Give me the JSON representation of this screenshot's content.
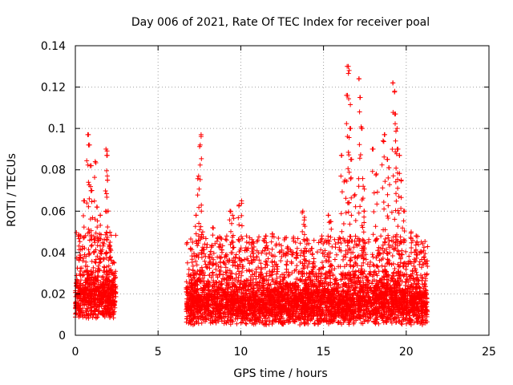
{
  "chart_data": {
    "type": "scatter",
    "title": "Day 006 of 2021, Rate Of TEC Index for receiver poal",
    "xlabel": "GPS time / hours",
    "ylabel": "ROTI / TECUs",
    "xlim": [
      0,
      25
    ],
    "ylim": [
      0,
      0.14
    ],
    "grid": true,
    "x_ticks": [
      0,
      5,
      10,
      15,
      20,
      25
    ],
    "y_ticks": [
      0,
      0.02,
      0.04,
      0.06,
      0.08,
      0.1,
      0.12,
      0.14
    ],
    "x_tick_labels": [
      "0",
      "5",
      "10",
      "15",
      "20",
      "25"
    ],
    "y_tick_labels": [
      "0",
      "0.02",
      "0.04",
      "0.06",
      "0.08",
      "0.1",
      "0.12",
      "0.14"
    ],
    "marker": "+",
    "color": "#ff0000",
    "series": [
      {
        "name": "ROTI",
        "segments": [
          {
            "x_start": 0.0,
            "x_end": 2.45,
            "baseline_min": 0.008,
            "baseline_max": 0.035
          },
          {
            "x_start": 6.7,
            "x_end": 21.3,
            "baseline_min": 0.005,
            "baseline_max": 0.033
          }
        ],
        "peaks": [
          {
            "x": 0.3,
            "y": 0.048
          },
          {
            "x": 0.5,
            "y": 0.065
          },
          {
            "x": 0.75,
            "y": 0.097
          },
          {
            "x": 0.8,
            "y": 0.092
          },
          {
            "x": 0.9,
            "y": 0.082
          },
          {
            "x": 1.0,
            "y": 0.07
          },
          {
            "x": 1.2,
            "y": 0.084
          },
          {
            "x": 1.3,
            "y": 0.062
          },
          {
            "x": 1.5,
            "y": 0.058
          },
          {
            "x": 1.85,
            "y": 0.09
          },
          {
            "x": 1.9,
            "y": 0.087
          },
          {
            "x": 1.95,
            "y": 0.075
          },
          {
            "x": 2.1,
            "y": 0.045
          },
          {
            "x": 7.3,
            "y": 0.058
          },
          {
            "x": 7.45,
            "y": 0.077
          },
          {
            "x": 7.55,
            "y": 0.092
          },
          {
            "x": 7.6,
            "y": 0.097
          },
          {
            "x": 7.7,
            "y": 0.05
          },
          {
            "x": 8.3,
            "y": 0.052
          },
          {
            "x": 8.8,
            "y": 0.047
          },
          {
            "x": 9.35,
            "y": 0.06
          },
          {
            "x": 9.5,
            "y": 0.058
          },
          {
            "x": 9.9,
            "y": 0.063
          },
          {
            "x": 10.05,
            "y": 0.065
          },
          {
            "x": 10.7,
            "y": 0.045
          },
          {
            "x": 11.5,
            "y": 0.048
          },
          {
            "x": 11.9,
            "y": 0.049
          },
          {
            "x": 12.8,
            "y": 0.042
          },
          {
            "x": 13.75,
            "y": 0.06
          },
          {
            "x": 13.85,
            "y": 0.057
          },
          {
            "x": 14.3,
            "y": 0.042
          },
          {
            "x": 14.9,
            "y": 0.048
          },
          {
            "x": 15.3,
            "y": 0.058
          },
          {
            "x": 15.45,
            "y": 0.055
          },
          {
            "x": 16.1,
            "y": 0.087
          },
          {
            "x": 16.3,
            "y": 0.075
          },
          {
            "x": 16.45,
            "y": 0.116
          },
          {
            "x": 16.5,
            "y": 0.13
          },
          {
            "x": 16.55,
            "y": 0.128
          },
          {
            "x": 16.6,
            "y": 0.1
          },
          {
            "x": 16.7,
            "y": 0.085
          },
          {
            "x": 16.9,
            "y": 0.068
          },
          {
            "x": 17.15,
            "y": 0.124
          },
          {
            "x": 17.2,
            "y": 0.115
          },
          {
            "x": 17.3,
            "y": 0.1
          },
          {
            "x": 17.4,
            "y": 0.072
          },
          {
            "x": 17.45,
            "y": 0.06
          },
          {
            "x": 18.0,
            "y": 0.09
          },
          {
            "x": 18.2,
            "y": 0.078
          },
          {
            "x": 18.6,
            "y": 0.094
          },
          {
            "x": 18.7,
            "y": 0.097
          },
          {
            "x": 18.85,
            "y": 0.085
          },
          {
            "x": 18.95,
            "y": 0.081
          },
          {
            "x": 19.2,
            "y": 0.122
          },
          {
            "x": 19.3,
            "y": 0.118
          },
          {
            "x": 19.35,
            "y": 0.107
          },
          {
            "x": 19.45,
            "y": 0.1
          },
          {
            "x": 19.5,
            "y": 0.09
          },
          {
            "x": 19.6,
            "y": 0.087
          },
          {
            "x": 19.7,
            "y": 0.075
          },
          {
            "x": 19.9,
            "y": 0.06
          },
          {
            "x": 20.3,
            "y": 0.05
          },
          {
            "x": 20.6,
            "y": 0.048
          }
        ]
      }
    ]
  }
}
